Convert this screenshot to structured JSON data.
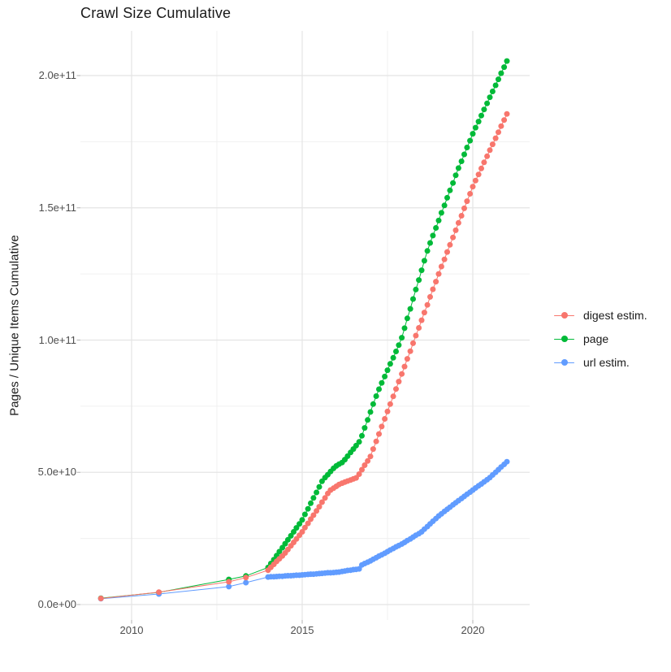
{
  "title": "Crawl Size Cumulative",
  "y_axis_title": "Pages / Unique Items Cumulative",
  "legend": {
    "position": "right",
    "items": [
      {
        "label": "digest estim.",
        "color": "#F8766D"
      },
      {
        "label": "page",
        "color": "#00BA38"
      },
      {
        "label": "url estim.",
        "color": "#619CFF"
      }
    ]
  },
  "chart_data": {
    "type": "scatter",
    "mode": "lines+markers",
    "title": "Crawl Size Cumulative",
    "xlabel": "",
    "ylabel": "Pages / Unique Items Cumulative",
    "value_scale": "values in units of 1e9 items",
    "xlim": [
      2008.5,
      2021.7
    ],
    "ylim_e9": [
      0,
      216
    ],
    "grid": true,
    "legend_position": "right",
    "axes": {
      "x_ticks": [
        {
          "value": 2010,
          "label": "2010"
        },
        {
          "value": 2015,
          "label": "2015"
        },
        {
          "value": 2020,
          "label": "2020"
        }
      ],
      "x_minor": [
        2012.5,
        2017.5
      ],
      "y_ticks": [
        {
          "value": 0,
          "label": "0.0e+00"
        },
        {
          "value": 50,
          "label": "5.0e+10"
        },
        {
          "value": 100,
          "label": "1.0e+11"
        },
        {
          "value": 150,
          "label": "1.5e+11"
        },
        {
          "value": 200,
          "label": "2.0e+11"
        }
      ],
      "y_minor": [
        25,
        75,
        125,
        175
      ]
    },
    "series": [
      {
        "name": "digest estim.",
        "color": "#F8766D",
        "points": [
          [
            2009.1,
            2.3
          ],
          [
            2010.8,
            4.7
          ],
          [
            2012.85,
            8.6
          ],
          [
            2013.35,
            10.2
          ],
          [
            2014,
            13
          ],
          [
            2014.08,
            14.1
          ],
          [
            2014.17,
            15.2
          ],
          [
            2014.25,
            16.3
          ],
          [
            2014.33,
            17.3
          ],
          [
            2014.42,
            18.4
          ],
          [
            2014.5,
            19.5
          ],
          [
            2014.58,
            20.8
          ],
          [
            2014.67,
            22.2
          ],
          [
            2014.75,
            23.5
          ],
          [
            2014.83,
            24.8
          ],
          [
            2014.92,
            26.2
          ],
          [
            2015,
            27.5
          ],
          [
            2015.08,
            29.1
          ],
          [
            2015.17,
            30.7
          ],
          [
            2015.25,
            32.3
          ],
          [
            2015.33,
            33.8
          ],
          [
            2015.42,
            35.4
          ],
          [
            2015.5,
            37
          ],
          [
            2015.58,
            38.7
          ],
          [
            2015.67,
            40.3
          ],
          [
            2015.75,
            42
          ],
          [
            2015.83,
            43.3
          ],
          [
            2015.92,
            44
          ],
          [
            2016,
            44.7
          ],
          [
            2016.08,
            45.4
          ],
          [
            2016.17,
            45.9
          ],
          [
            2016.25,
            46.3
          ],
          [
            2016.33,
            46.7
          ],
          [
            2016.42,
            47.1
          ],
          [
            2016.5,
            47.5
          ],
          [
            2016.58,
            47.9
          ],
          [
            2016.67,
            49.3
          ],
          [
            2016.75,
            51
          ],
          [
            2016.83,
            52.7
          ],
          [
            2016.92,
            54.3
          ],
          [
            2017,
            56
          ],
          [
            2017.08,
            58.8
          ],
          [
            2017.17,
            61.7
          ],
          [
            2017.25,
            64.5
          ],
          [
            2017.33,
            67.3
          ],
          [
            2017.42,
            70.2
          ],
          [
            2017.5,
            73
          ],
          [
            2017.58,
            75.8
          ],
          [
            2017.67,
            78.7
          ],
          [
            2017.75,
            81.5
          ],
          [
            2017.83,
            84.3
          ],
          [
            2017.92,
            87.2
          ],
          [
            2018,
            90
          ],
          [
            2018.08,
            92.9
          ],
          [
            2018.17,
            95.8
          ],
          [
            2018.25,
            98.8
          ],
          [
            2018.33,
            101.7
          ],
          [
            2018.42,
            104.6
          ],
          [
            2018.5,
            107.5
          ],
          [
            2018.58,
            110.4
          ],
          [
            2018.67,
            113.3
          ],
          [
            2018.75,
            116.3
          ],
          [
            2018.83,
            119.2
          ],
          [
            2018.92,
            122.1
          ],
          [
            2019,
            125
          ],
          [
            2019.08,
            127.8
          ],
          [
            2019.17,
            130.5
          ],
          [
            2019.25,
            133.3
          ],
          [
            2019.33,
            136
          ],
          [
            2019.42,
            138.8
          ],
          [
            2019.5,
            141.5
          ],
          [
            2019.58,
            144.3
          ],
          [
            2019.67,
            147
          ],
          [
            2019.75,
            149.8
          ],
          [
            2019.83,
            152.5
          ],
          [
            2019.92,
            155.3
          ],
          [
            2020,
            158
          ],
          [
            2020.08,
            160.3
          ],
          [
            2020.17,
            162.6
          ],
          [
            2020.25,
            164.9
          ],
          [
            2020.33,
            167.2
          ],
          [
            2020.42,
            169.5
          ],
          [
            2020.5,
            171.8
          ],
          [
            2020.58,
            174
          ],
          [
            2020.67,
            176.3
          ],
          [
            2020.75,
            178.6
          ],
          [
            2020.83,
            180.9
          ],
          [
            2020.92,
            183.2
          ],
          [
            2021,
            185.5
          ]
        ]
      },
      {
        "name": "page",
        "color": "#00BA38",
        "points": [
          [
            2009.1,
            2.4
          ],
          [
            2010.8,
            4.6
          ],
          [
            2012.85,
            9.5
          ],
          [
            2013.35,
            10.8
          ],
          [
            2014,
            14
          ],
          [
            2014.08,
            15.5
          ],
          [
            2014.17,
            17
          ],
          [
            2014.25,
            18.5
          ],
          [
            2014.33,
            20
          ],
          [
            2014.42,
            21.5
          ],
          [
            2014.5,
            23
          ],
          [
            2014.58,
            24.5
          ],
          [
            2014.67,
            26
          ],
          [
            2014.75,
            27.5
          ],
          [
            2014.83,
            29
          ],
          [
            2014.92,
            30.5
          ],
          [
            2015,
            32
          ],
          [
            2015.08,
            34.1
          ],
          [
            2015.17,
            36.2
          ],
          [
            2015.25,
            38.3
          ],
          [
            2015.33,
            40.3
          ],
          [
            2015.42,
            42.4
          ],
          [
            2015.5,
            44.5
          ],
          [
            2015.58,
            46.6
          ],
          [
            2015.67,
            48
          ],
          [
            2015.75,
            49.1
          ],
          [
            2015.83,
            50.3
          ],
          [
            2015.92,
            51.5
          ],
          [
            2016,
            52.4
          ],
          [
            2016.08,
            53.1
          ],
          [
            2016.17,
            53.7
          ],
          [
            2016.25,
            54.8
          ],
          [
            2016.33,
            56.1
          ],
          [
            2016.42,
            57.5
          ],
          [
            2016.5,
            58.8
          ],
          [
            2016.58,
            60.1
          ],
          [
            2016.67,
            61.5
          ],
          [
            2016.75,
            63.8
          ],
          [
            2016.83,
            66.8
          ],
          [
            2016.92,
            69.8
          ],
          [
            2017,
            72.8
          ],
          [
            2017.08,
            75.8
          ],
          [
            2017.17,
            78.8
          ],
          [
            2017.25,
            81.4
          ],
          [
            2017.33,
            83.8
          ],
          [
            2017.42,
            86.2
          ],
          [
            2017.5,
            88.6
          ],
          [
            2017.58,
            91
          ],
          [
            2017.67,
            93.3
          ],
          [
            2017.75,
            95.7
          ],
          [
            2017.83,
            98.1
          ],
          [
            2017.92,
            100.9
          ],
          [
            2018,
            104.5
          ],
          [
            2018.08,
            108.2
          ],
          [
            2018.17,
            111.8
          ],
          [
            2018.25,
            115.5
          ],
          [
            2018.33,
            119.1
          ],
          [
            2018.42,
            122.7
          ],
          [
            2018.5,
            126.4
          ],
          [
            2018.58,
            130
          ],
          [
            2018.67,
            133.7
          ],
          [
            2018.75,
            136.7
          ],
          [
            2018.83,
            139.5
          ],
          [
            2018.92,
            142.4
          ],
          [
            2019,
            145.2
          ],
          [
            2019.08,
            148.1
          ],
          [
            2019.17,
            150.9
          ],
          [
            2019.25,
            153.8
          ],
          [
            2019.33,
            156.6
          ],
          [
            2019.42,
            159.4
          ],
          [
            2019.5,
            162.3
          ],
          [
            2019.58,
            165
          ],
          [
            2019.67,
            167.6
          ],
          [
            2019.75,
            170.2
          ],
          [
            2019.83,
            172.8
          ],
          [
            2019.92,
            175.4
          ],
          [
            2020,
            178
          ],
          [
            2020.08,
            180.3
          ],
          [
            2020.17,
            182.6
          ],
          [
            2020.25,
            184.9
          ],
          [
            2020.33,
            187.2
          ],
          [
            2020.42,
            189.5
          ],
          [
            2020.5,
            191.8
          ],
          [
            2020.58,
            194
          ],
          [
            2020.67,
            196.3
          ],
          [
            2020.75,
            198.6
          ],
          [
            2020.83,
            200.9
          ],
          [
            2020.92,
            203.2
          ],
          [
            2021,
            205.5
          ]
        ]
      },
      {
        "name": "url estim.",
        "color": "#619CFF",
        "points": [
          [
            2009.1,
            2.2
          ],
          [
            2010.8,
            4
          ],
          [
            2012.85,
            6.8
          ],
          [
            2013.35,
            8.3
          ],
          [
            2014,
            10.4
          ],
          [
            2014.08,
            10.5
          ],
          [
            2014.17,
            10.5
          ],
          [
            2014.25,
            10.6
          ],
          [
            2014.33,
            10.7
          ],
          [
            2014.42,
            10.7
          ],
          [
            2014.5,
            10.8
          ],
          [
            2014.58,
            10.9
          ],
          [
            2014.67,
            10.9
          ],
          [
            2014.75,
            11
          ],
          [
            2014.83,
            11.1
          ],
          [
            2014.92,
            11.1
          ],
          [
            2015,
            11.2
          ],
          [
            2015.08,
            11.3
          ],
          [
            2015.17,
            11.4
          ],
          [
            2015.25,
            11.5
          ],
          [
            2015.33,
            11.5
          ],
          [
            2015.42,
            11.6
          ],
          [
            2015.5,
            11.7
          ],
          [
            2015.58,
            11.8
          ],
          [
            2015.67,
            11.9
          ],
          [
            2015.75,
            12
          ],
          [
            2015.83,
            12
          ],
          [
            2015.92,
            12.1
          ],
          [
            2016,
            12.2
          ],
          [
            2016.08,
            12.3
          ],
          [
            2016.17,
            12.5
          ],
          [
            2016.25,
            12.7
          ],
          [
            2016.33,
            12.9
          ],
          [
            2016.42,
            13
          ],
          [
            2016.5,
            13.2
          ],
          [
            2016.58,
            13.3
          ],
          [
            2016.67,
            13.5
          ],
          [
            2016.75,
            15
          ],
          [
            2016.83,
            15.5
          ],
          [
            2016.92,
            16
          ],
          [
            2017,
            16.5
          ],
          [
            2017.08,
            17.1
          ],
          [
            2017.17,
            17.7
          ],
          [
            2017.25,
            18.3
          ],
          [
            2017.33,
            18.8
          ],
          [
            2017.42,
            19.4
          ],
          [
            2017.5,
            20
          ],
          [
            2017.58,
            20.6
          ],
          [
            2017.67,
            21.2
          ],
          [
            2017.75,
            21.8
          ],
          [
            2017.83,
            22.3
          ],
          [
            2017.92,
            22.9
          ],
          [
            2018,
            23.5
          ],
          [
            2018.08,
            24.2
          ],
          [
            2018.17,
            24.8
          ],
          [
            2018.25,
            25.5
          ],
          [
            2018.33,
            26.2
          ],
          [
            2018.42,
            26.8
          ],
          [
            2018.5,
            27.5
          ],
          [
            2018.58,
            28.5
          ],
          [
            2018.67,
            29.5
          ],
          [
            2018.75,
            30.5
          ],
          [
            2018.83,
            31.5
          ],
          [
            2018.92,
            32.5
          ],
          [
            2019,
            33.5
          ],
          [
            2019.08,
            34.3
          ],
          [
            2019.17,
            35.2
          ],
          [
            2019.25,
            36
          ],
          [
            2019.33,
            36.8
          ],
          [
            2019.42,
            37.7
          ],
          [
            2019.5,
            38.5
          ],
          [
            2019.58,
            39.3
          ],
          [
            2019.67,
            40.1
          ],
          [
            2019.75,
            40.9
          ],
          [
            2019.83,
            41.7
          ],
          [
            2019.92,
            42.5
          ],
          [
            2020,
            43.3
          ],
          [
            2020.08,
            44.1
          ],
          [
            2020.17,
            44.9
          ],
          [
            2020.25,
            45.6
          ],
          [
            2020.33,
            46.4
          ],
          [
            2020.42,
            47.2
          ],
          [
            2020.5,
            48
          ],
          [
            2020.58,
            49
          ],
          [
            2020.67,
            50
          ],
          [
            2020.75,
            51
          ],
          [
            2020.83,
            52
          ],
          [
            2020.92,
            53
          ],
          [
            2021,
            54
          ]
        ]
      }
    ]
  }
}
